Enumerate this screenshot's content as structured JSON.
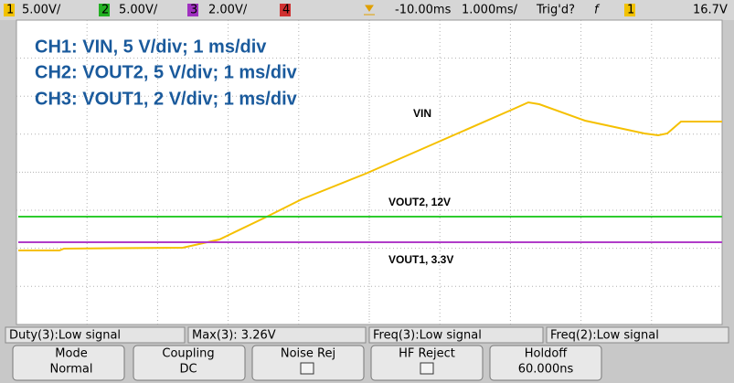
{
  "status_bar": {
    "channels": [
      {
        "number": "1",
        "scale": "5.00V/"
      },
      {
        "number": "2",
        "scale": "5.00V/"
      },
      {
        "number": "3",
        "scale": "2.00V/"
      },
      {
        "number": "4"
      }
    ],
    "delay": "-10.00ms",
    "timebase": "1.000ms/",
    "trigger_status": "Trig'd?",
    "trigger_slope": "f",
    "trigger_channel": "1",
    "trigger_level": "16.7V"
  },
  "annotations": {
    "lines": [
      "CH1: VIN, 5 V/div; 1 ms/div",
      "CH2: VOUT2, 5 V/div; 1 ms/div",
      "CH3: VOUT1, 2 V/div; 1 ms/div"
    ],
    "vin": "VIN",
    "vout2": "VOUT2, 12V",
    "vout1": "VOUT1, 3.3V"
  },
  "measurements": [
    "Duty(3):Low signal",
    "Max(3): 3.26V",
    "Freq(3):Low signal",
    "Freq(2):Low signal"
  ],
  "softkeys": [
    {
      "label": "Mode",
      "value": "Normal"
    },
    {
      "label": "Coupling",
      "value": "DC"
    },
    {
      "label": "Noise Rej"
    },
    {
      "label": "HF Reject"
    },
    {
      "label": "Holdoff",
      "value": "60.000ns"
    }
  ]
}
